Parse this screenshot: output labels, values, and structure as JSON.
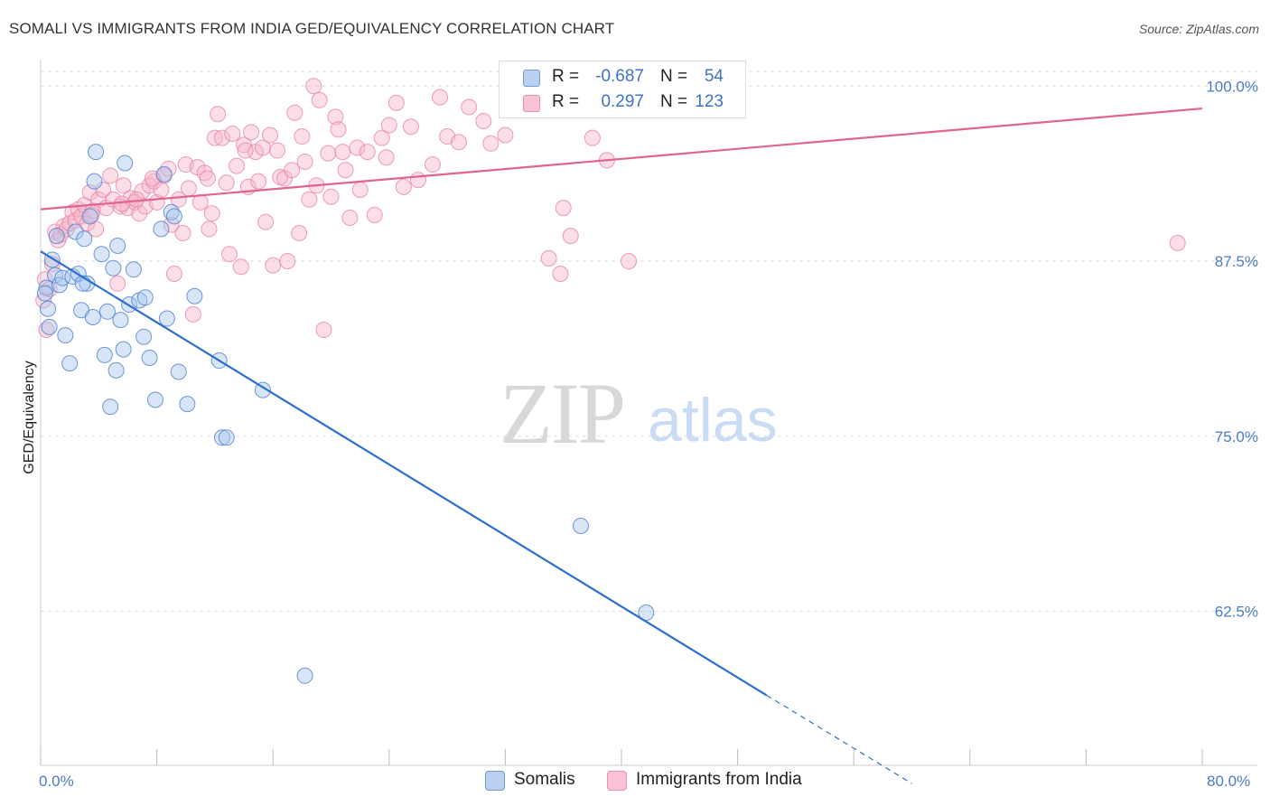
{
  "title": "SOMALI VS IMMIGRANTS FROM INDIA GED/EQUIVALENCY CORRELATION CHART",
  "source": "Source: ZipAtlas.com",
  "watermark": {
    "zip": "ZIP",
    "atlas": "atlas"
  },
  "colors": {
    "somalis_fill": "#a9c6ee",
    "somalis_stroke": "#4a80cf",
    "somalis_line": "#2e6fcf",
    "india_fill": "#f6b6c9",
    "india_stroke": "#e884a6",
    "india_line": "#e0648f",
    "tick_text": "#4a7cc7",
    "grid": "#dddddd"
  },
  "legend": {
    "rows": [
      {
        "series": "Somalis",
        "r_label": "R =",
        "r_value": "-0.687",
        "n_label": "N =",
        "n_value": "54"
      },
      {
        "series": "Immigrants from India",
        "r_label": "R =",
        "r_value": "0.297",
        "n_label": "N =",
        "n_value": "123"
      }
    ]
  },
  "bottom_legend": {
    "somalis": "Somalis",
    "india": "Immigrants from India"
  },
  "chart_data": {
    "type": "scatter",
    "title": "SOMALI VS IMMIGRANTS FROM INDIA GED/EQUIVALENCY CORRELATION CHART",
    "xlabel": "",
    "ylabel": "GED/Equivalency",
    "xlim": [
      0,
      80
    ],
    "ylim": [
      51.5,
      101.5
    ],
    "x_tick_labels": [
      "0.0%",
      "80.0%"
    ],
    "y_ticks": [
      62.5,
      75.0,
      87.5,
      100.0
    ],
    "y_tick_labels": [
      "62.5%",
      "75.0%",
      "87.5%",
      "100.0%"
    ],
    "grid": true,
    "legend_position": "top-center",
    "series": [
      {
        "name": "Somalis",
        "color": "#a9c6ee",
        "trend": {
          "x": [
            0,
            50
          ],
          "y": [
            88.2,
            56.5
          ],
          "dashed_to": {
            "x": 60,
            "y": 50.2
          }
        },
        "points": [
          [
            0.4,
            85.6
          ],
          [
            0.5,
            84.1
          ],
          [
            0.6,
            82.8
          ],
          [
            0.8,
            87.6
          ],
          [
            1.0,
            86.5
          ],
          [
            1.1,
            89.3
          ],
          [
            1.3,
            85.8
          ],
          [
            1.5,
            86.3
          ],
          [
            1.7,
            82.2
          ],
          [
            2.0,
            80.2
          ],
          [
            2.2,
            86.4
          ],
          [
            2.4,
            89.6
          ],
          [
            2.6,
            86.6
          ],
          [
            2.8,
            84.0
          ],
          [
            3.0,
            89.1
          ],
          [
            3.2,
            85.9
          ],
          [
            3.4,
            90.7
          ],
          [
            3.6,
            83.5
          ],
          [
            3.8,
            95.3
          ],
          [
            3.7,
            93.2
          ],
          [
            4.2,
            88.0
          ],
          [
            4.4,
            80.8
          ],
          [
            4.6,
            83.9
          ],
          [
            4.8,
            77.1
          ],
          [
            5.0,
            87.0
          ],
          [
            5.2,
            79.7
          ],
          [
            5.3,
            88.6
          ],
          [
            5.5,
            83.3
          ],
          [
            5.7,
            81.2
          ],
          [
            5.8,
            94.5
          ],
          [
            6.1,
            84.4
          ],
          [
            6.4,
            86.9
          ],
          [
            6.8,
            84.7
          ],
          [
            7.1,
            82.1
          ],
          [
            7.2,
            84.9
          ],
          [
            7.5,
            80.6
          ],
          [
            7.9,
            77.6
          ],
          [
            8.3,
            89.8
          ],
          [
            8.5,
            93.7
          ],
          [
            8.7,
            83.4
          ],
          [
            9.0,
            91.0
          ],
          [
            9.2,
            90.7
          ],
          [
            9.5,
            79.6
          ],
          [
            10.1,
            77.3
          ],
          [
            10.6,
            85.0
          ],
          [
            12.3,
            80.4
          ],
          [
            12.5,
            74.9
          ],
          [
            12.8,
            74.9
          ],
          [
            15.3,
            78.3
          ],
          [
            18.2,
            57.9
          ],
          [
            37.2,
            68.6
          ],
          [
            41.7,
            62.4
          ],
          [
            0.3,
            85.2
          ],
          [
            2.9,
            85.9
          ]
        ]
      },
      {
        "name": "Immigrants from India",
        "color": "#f6b6c9",
        "trend": {
          "x": [
            0,
            80
          ],
          "y": [
            91.2,
            98.4
          ]
        },
        "points": [
          [
            0.2,
            84.7
          ],
          [
            0.3,
            86.2
          ],
          [
            0.4,
            82.6
          ],
          [
            0.6,
            85.5
          ],
          [
            0.8,
            87.3
          ],
          [
            1.0,
            89.6
          ],
          [
            1.2,
            89.0
          ],
          [
            1.4,
            89.4
          ],
          [
            1.6,
            90.0
          ],
          [
            1.8,
            89.8
          ],
          [
            2.0,
            90.2
          ],
          [
            2.2,
            91.0
          ],
          [
            2.4,
            90.4
          ],
          [
            2.6,
            91.2
          ],
          [
            2.8,
            90.7
          ],
          [
            3.0,
            91.5
          ],
          [
            3.2,
            90.2
          ],
          [
            3.4,
            92.4
          ],
          [
            3.6,
            91.1
          ],
          [
            3.8,
            89.8
          ],
          [
            4.0,
            91.9
          ],
          [
            4.3,
            92.6
          ],
          [
            4.5,
            91.3
          ],
          [
            4.8,
            93.6
          ],
          [
            5.0,
            91.9
          ],
          [
            5.3,
            85.9
          ],
          [
            5.5,
            91.4
          ],
          [
            5.7,
            92.9
          ],
          [
            6.0,
            91.3
          ],
          [
            6.2,
            92.0
          ],
          [
            6.5,
            91.7
          ],
          [
            6.8,
            90.9
          ],
          [
            7.0,
            92.5
          ],
          [
            7.2,
            91.4
          ],
          [
            7.5,
            92.9
          ],
          [
            7.8,
            93.2
          ],
          [
            8.0,
            91.7
          ],
          [
            8.3,
            92.6
          ],
          [
            8.5,
            93.6
          ],
          [
            8.8,
            94.1
          ],
          [
            9.0,
            90.1
          ],
          [
            9.2,
            86.6
          ],
          [
            9.5,
            91.9
          ],
          [
            9.8,
            89.5
          ],
          [
            10.0,
            94.4
          ],
          [
            10.2,
            92.7
          ],
          [
            10.5,
            83.7
          ],
          [
            10.8,
            94.2
          ],
          [
            11.0,
            91.7
          ],
          [
            11.3,
            93.8
          ],
          [
            11.5,
            93.4
          ],
          [
            11.8,
            90.9
          ],
          [
            12.0,
            96.3
          ],
          [
            12.2,
            98.0
          ],
          [
            12.5,
            96.3
          ],
          [
            12.8,
            93.1
          ],
          [
            13.0,
            88.0
          ],
          [
            13.2,
            96.6
          ],
          [
            13.5,
            94.3
          ],
          [
            13.8,
            87.1
          ],
          [
            14.0,
            95.8
          ],
          [
            14.3,
            92.8
          ],
          [
            14.5,
            96.7
          ],
          [
            14.8,
            95.3
          ],
          [
            15.0,
            93.2
          ],
          [
            15.3,
            95.6
          ],
          [
            15.5,
            90.3
          ],
          [
            15.8,
            96.5
          ],
          [
            16.0,
            87.2
          ],
          [
            16.3,
            95.4
          ],
          [
            16.5,
            93.5
          ],
          [
            16.8,
            93.4
          ],
          [
            17.0,
            87.5
          ],
          [
            17.3,
            94.0
          ],
          [
            17.5,
            98.1
          ],
          [
            17.8,
            89.5
          ],
          [
            18.0,
            96.4
          ],
          [
            18.2,
            94.6
          ],
          [
            18.5,
            91.9
          ],
          [
            18.8,
            100.0
          ],
          [
            19.0,
            92.9
          ],
          [
            19.2,
            99.0
          ],
          [
            19.5,
            82.6
          ],
          [
            19.8,
            95.2
          ],
          [
            20.0,
            92.1
          ],
          [
            20.3,
            97.8
          ],
          [
            20.5,
            96.9
          ],
          [
            20.8,
            95.3
          ],
          [
            21.0,
            94.0
          ],
          [
            21.3,
            90.6
          ],
          [
            21.8,
            95.6
          ],
          [
            22.0,
            92.6
          ],
          [
            22.5,
            95.3
          ],
          [
            23.0,
            90.8
          ],
          [
            23.5,
            96.3
          ],
          [
            23.8,
            94.9
          ],
          [
            24.0,
            97.2
          ],
          [
            24.5,
            98.8
          ],
          [
            25.0,
            92.8
          ],
          [
            25.5,
            97.1
          ],
          [
            26.0,
            93.3
          ],
          [
            27.0,
            94.4
          ],
          [
            27.5,
            99.2
          ],
          [
            28.0,
            96.4
          ],
          [
            28.8,
            96.0
          ],
          [
            29.5,
            98.5
          ],
          [
            30.5,
            97.5
          ],
          [
            31.0,
            95.9
          ],
          [
            32.0,
            96.5
          ],
          [
            35.0,
            87.7
          ],
          [
            35.8,
            86.6
          ],
          [
            36.0,
            91.3
          ],
          [
            36.5,
            89.3
          ],
          [
            38.0,
            96.3
          ],
          [
            39.0,
            94.7
          ],
          [
            40.5,
            87.5
          ],
          [
            78.3,
            88.8
          ],
          [
            3.5,
            90.8
          ],
          [
            5.6,
            91.6
          ],
          [
            6.6,
            91.9
          ],
          [
            7.7,
            93.4
          ],
          [
            11.6,
            89.8
          ],
          [
            14.1,
            95.4
          ]
        ]
      }
    ]
  }
}
